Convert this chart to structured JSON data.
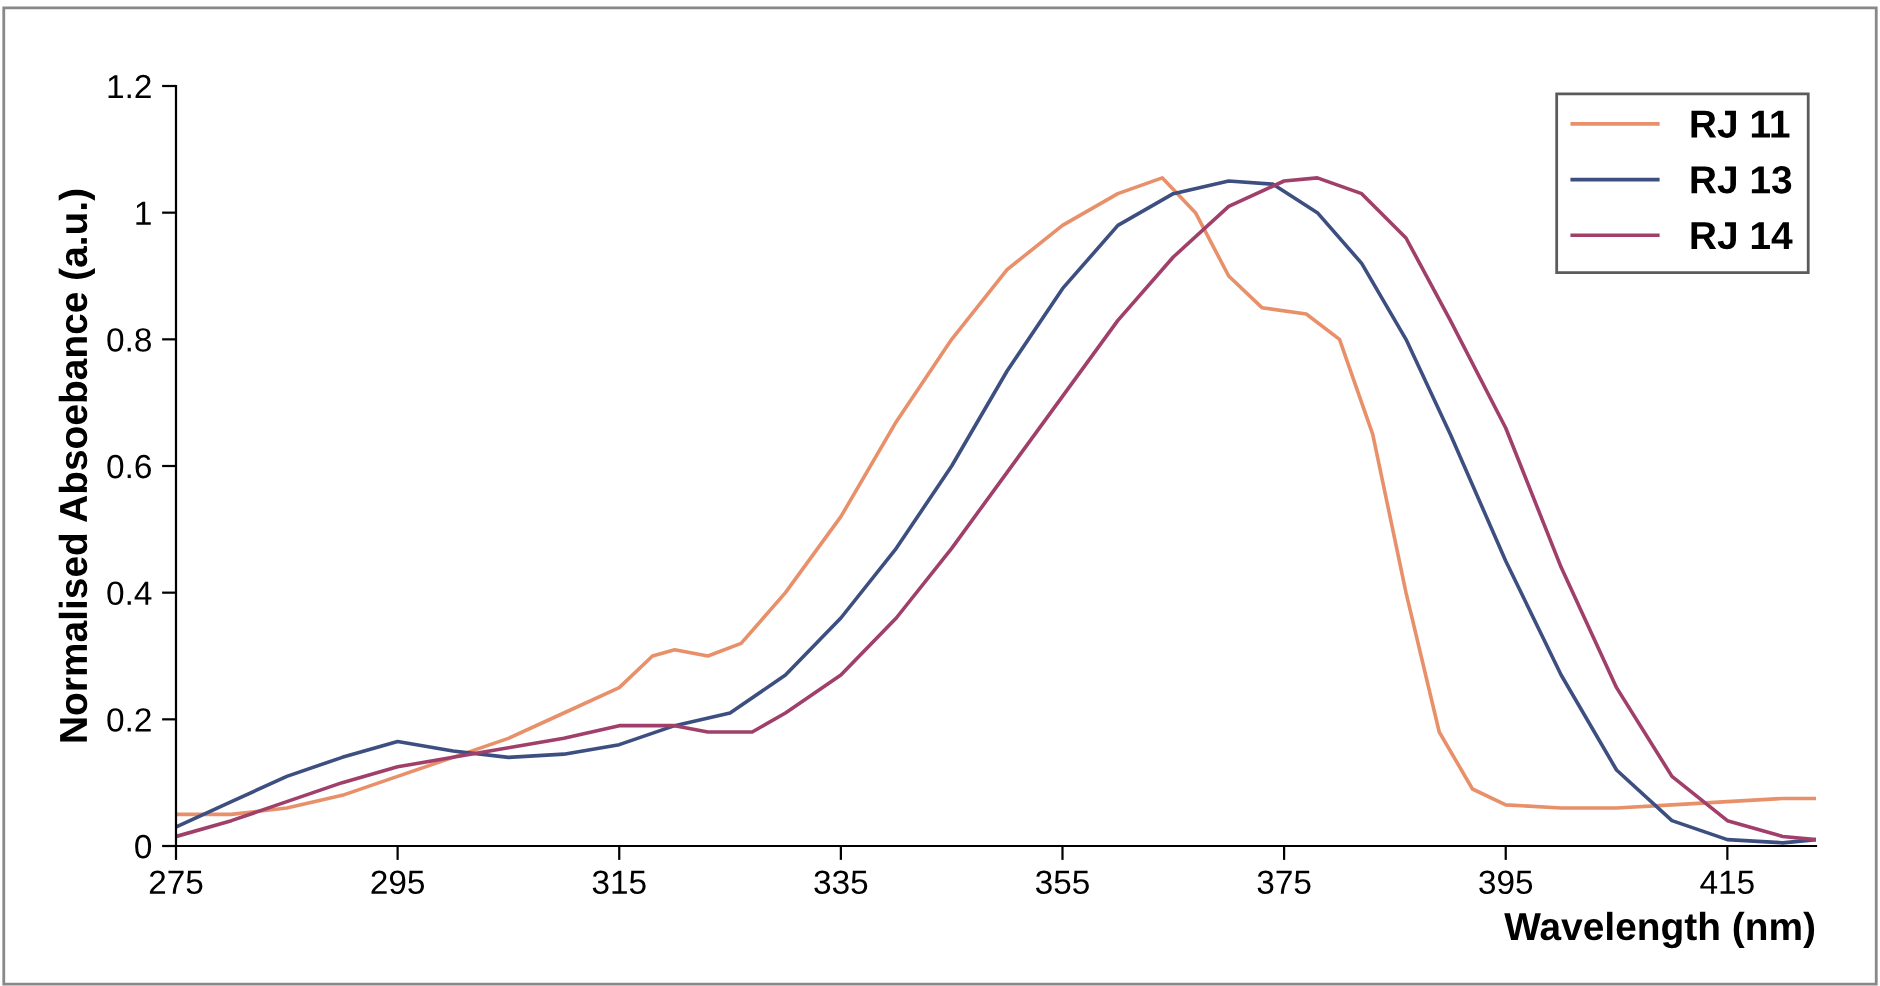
{
  "chart_data": {
    "type": "line",
    "xlabel": "Wavelength (nm)",
    "ylabel": "Normalised Absoebance (a.u.)",
    "xlim": [
      275,
      423
    ],
    "xticks": [
      275,
      295,
      315,
      335,
      355,
      375,
      395,
      415
    ],
    "ylim": [
      0,
      1.2
    ],
    "yticks": [
      0,
      0.2,
      0.4,
      0.6,
      0.8,
      1,
      1.2
    ],
    "grid": false,
    "legend": "top right",
    "marker": "none",
    "line_style": "solid",
    "series": [
      {
        "name": "RJ 11",
        "color": "#e8906a",
        "x": [
          275,
          280,
          285,
          290,
          295,
          300,
          305,
          310,
          315,
          318,
          320,
          323,
          326,
          330,
          335,
          340,
          345,
          350,
          355,
          360,
          364,
          367,
          370,
          373,
          377,
          380,
          383,
          386,
          389,
          392,
          395,
          400,
          405,
          410,
          415,
          420,
          423
        ],
        "values": [
          0.05,
          0.05,
          0.06,
          0.08,
          0.11,
          0.14,
          0.17,
          0.21,
          0.25,
          0.3,
          0.31,
          0.3,
          0.32,
          0.4,
          0.52,
          0.67,
          0.8,
          0.91,
          0.98,
          1.03,
          1.055,
          1.0,
          0.9,
          0.85,
          0.84,
          0.8,
          0.65,
          0.4,
          0.18,
          0.09,
          0.065,
          0.06,
          0.06,
          0.065,
          0.07,
          0.075,
          0.075
        ]
      },
      {
        "name": "RJ 13",
        "color": "#3d4f80",
        "x": [
          275,
          280,
          285,
          290,
          295,
          300,
          305,
          310,
          315,
          320,
          325,
          330,
          335,
          340,
          345,
          350,
          355,
          360,
          365,
          370,
          374,
          378,
          382,
          386,
          390,
          395,
          400,
          405,
          410,
          415,
          420,
          423
        ],
        "values": [
          0.03,
          0.07,
          0.11,
          0.14,
          0.165,
          0.15,
          0.14,
          0.145,
          0.16,
          0.19,
          0.21,
          0.27,
          0.36,
          0.47,
          0.6,
          0.75,
          0.88,
          0.98,
          1.03,
          1.05,
          1.045,
          1.0,
          0.92,
          0.8,
          0.65,
          0.45,
          0.27,
          0.12,
          0.04,
          0.01,
          0.005,
          0.01
        ]
      },
      {
        "name": "RJ 14",
        "color": "#a0406a",
        "x": [
          275,
          280,
          285,
          290,
          295,
          300,
          305,
          310,
          315,
          320,
          323,
          327,
          330,
          335,
          340,
          345,
          350,
          355,
          360,
          365,
          370,
          375,
          378,
          382,
          386,
          390,
          395,
          400,
          405,
          410,
          415,
          420,
          423
        ],
        "values": [
          0.015,
          0.04,
          0.07,
          0.1,
          0.125,
          0.14,
          0.155,
          0.17,
          0.19,
          0.19,
          0.18,
          0.18,
          0.21,
          0.27,
          0.36,
          0.47,
          0.59,
          0.71,
          0.83,
          0.93,
          1.01,
          1.05,
          1.055,
          1.03,
          0.96,
          0.83,
          0.66,
          0.44,
          0.25,
          0.11,
          0.04,
          0.015,
          0.01
        ]
      }
    ]
  }
}
